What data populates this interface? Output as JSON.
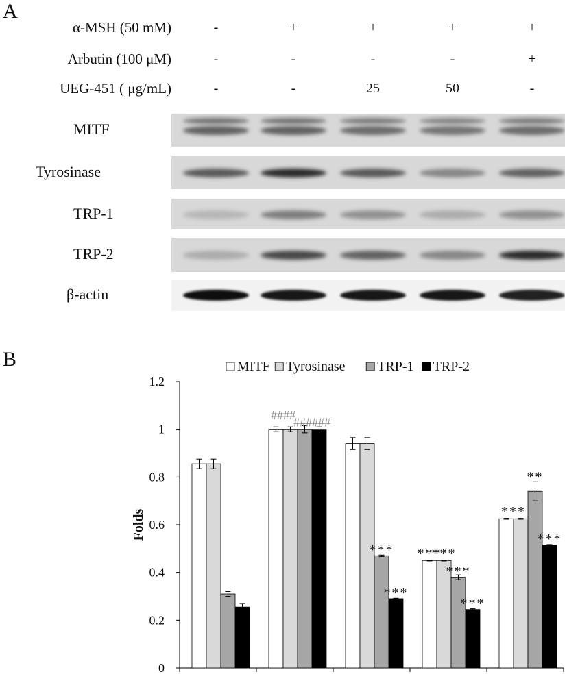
{
  "panel_a": {
    "letter": "A",
    "treatments": [
      {
        "label": "α-MSH (50 mM)",
        "values": [
          "-",
          "+",
          "+",
          "+",
          "+"
        ]
      },
      {
        "label": "Arbutin (100 μM)",
        "values": [
          "-",
          "-",
          "-",
          "-",
          "+"
        ]
      },
      {
        "label": "UEG-451 ( μg/mL)",
        "values": [
          "-",
          "-",
          "25",
          "50",
          "-"
        ]
      }
    ],
    "blots": [
      {
        "label": "MITF",
        "intensity": [
          0.55,
          0.55,
          0.5,
          0.45,
          0.5
        ]
      },
      {
        "label": "Tyrosinase",
        "intensity": [
          0.6,
          0.85,
          0.6,
          0.35,
          0.55
        ]
      },
      {
        "label": "TRP-1",
        "intensity": [
          0.1,
          0.4,
          0.3,
          0.15,
          0.3
        ]
      },
      {
        "label": "TRP-2",
        "intensity": [
          0.15,
          0.7,
          0.55,
          0.35,
          0.85
        ]
      },
      {
        "label": "β-actin",
        "intensity": [
          1.0,
          0.95,
          0.95,
          0.95,
          0.9
        ]
      }
    ]
  },
  "panel_b": {
    "letter": "B"
  },
  "chart_data": {
    "type": "bar",
    "ylabel": "Folds",
    "ylim": [
      0,
      1.2
    ],
    "yticks": [
      "0",
      "0.2",
      "0.4",
      "0.6",
      "0.8",
      "1",
      "1.2"
    ],
    "legend_position": "top",
    "groups": 5,
    "series": [
      {
        "name": "MITF",
        "color": "#ffffff",
        "values": [
          0.855,
          1.0,
          0.94,
          0.45,
          0.625
        ],
        "errors": [
          0.02,
          0.01,
          0.025,
          0.002,
          0.002
        ]
      },
      {
        "name": "Tyrosinase",
        "color": "#d9d9d9",
        "values": [
          0.855,
          1.0,
          0.94,
          0.45,
          0.625
        ],
        "errors": [
          0.02,
          0.01,
          0.025,
          0.002,
          0.002
        ]
      },
      {
        "name": "TRP-1",
        "color": "#a6a6a6",
        "values": [
          0.31,
          1.0,
          0.47,
          0.38,
          0.74
        ],
        "errors": [
          0.01,
          0.015,
          0.003,
          0.01,
          0.04
        ]
      },
      {
        "name": "TRP-2",
        "color": "#000000",
        "values": [
          0.255,
          1.0,
          0.29,
          0.245,
          0.515
        ],
        "errors": [
          0.015,
          0.01,
          0.002,
          0.003,
          0.002
        ]
      }
    ],
    "annotations": [
      {
        "text": "####",
        "group": 1,
        "series": 0.5,
        "value": 1.065
      },
      {
        "text": "######",
        "group": 1,
        "series": 2.5,
        "value": 1.035
      },
      {
        "text": "***",
        "group": 2,
        "series": 2,
        "value": 0.5
      },
      {
        "text": "***",
        "group": 2,
        "series": 3,
        "value": 0.32
      },
      {
        "text": "***",
        "group": 3,
        "series": 0,
        "value": 0.485
      },
      {
        "text": "***",
        "group": 3,
        "series": 1,
        "value": 0.485
      },
      {
        "text": "***",
        "group": 3,
        "series": 2,
        "value": 0.41
      },
      {
        "text": "***",
        "group": 3,
        "series": 3,
        "value": 0.275
      },
      {
        "text": "***",
        "group": 4,
        "series": 0.5,
        "value": 0.66
      },
      {
        "text": "**",
        "group": 4,
        "series": 2,
        "value": 0.805
      },
      {
        "text": "***",
        "group": 4,
        "series": 3,
        "value": 0.545
      }
    ]
  }
}
